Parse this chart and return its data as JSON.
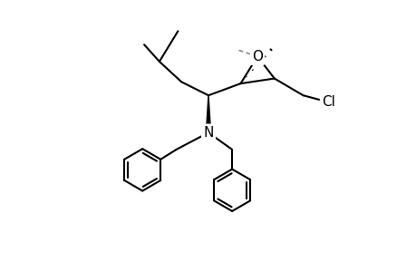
{
  "background_color": "#ffffff",
  "line_color": "#000000",
  "line_width": 1.5,
  "figure_width": 4.6,
  "figure_height": 3.0,
  "dpi": 100,
  "font_size_atom": 11,
  "xlim": [
    0,
    10
  ],
  "ylim": [
    0,
    8
  ]
}
